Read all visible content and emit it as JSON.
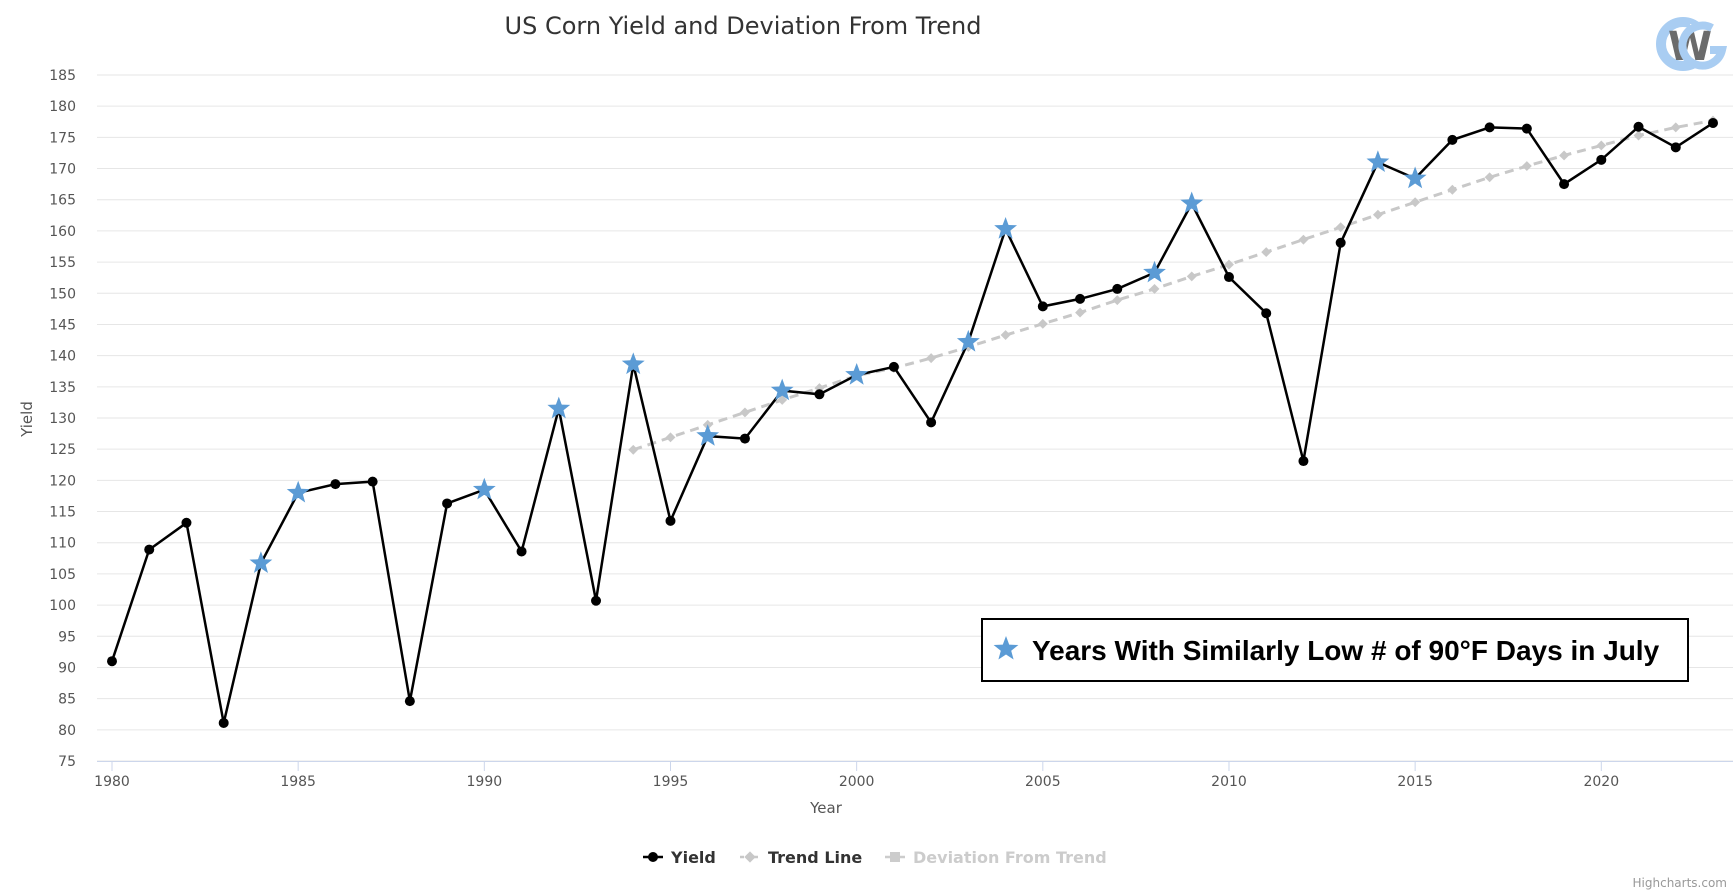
{
  "chart_data": {
    "type": "line",
    "title": "US Corn Yield and Deviation From Trend",
    "xlabel": "Year",
    "ylabel": "Yield",
    "xlim": [
      1980,
      2023
    ],
    "ylim": [
      75,
      185
    ],
    "x_ticks": [
      1980,
      1985,
      1990,
      1995,
      2000,
      2005,
      2010,
      2015,
      2020
    ],
    "y_ticks": [
      75,
      80,
      85,
      90,
      95,
      100,
      105,
      110,
      115,
      120,
      125,
      130,
      135,
      140,
      145,
      150,
      155,
      160,
      165,
      170,
      175,
      180,
      185
    ],
    "grid": true,
    "legend_position": "bottom-center",
    "series": [
      {
        "name": "Yield",
        "color": "#000000",
        "x": [
          1980,
          1981,
          1982,
          1983,
          1984,
          1985,
          1986,
          1987,
          1988,
          1989,
          1990,
          1991,
          1992,
          1993,
          1994,
          1995,
          1996,
          1997,
          1998,
          1999,
          2000,
          2001,
          2002,
          2003,
          2004,
          2005,
          2006,
          2007,
          2008,
          2009,
          2010,
          2011,
          2012,
          2013,
          2014,
          2015,
          2016,
          2017,
          2018,
          2019,
          2020,
          2021,
          2022,
          2023
        ],
        "values": [
          91.0,
          108.9,
          113.2,
          81.1,
          106.7,
          118.0,
          119.4,
          119.8,
          84.6,
          116.3,
          118.5,
          108.6,
          131.5,
          100.7,
          138.6,
          113.5,
          127.1,
          126.7,
          134.4,
          133.8,
          136.9,
          138.2,
          129.3,
          142.2,
          160.3,
          147.9,
          149.1,
          150.7,
          153.3,
          164.4,
          152.6,
          146.8,
          123.1,
          158.1,
          171.0,
          168.4,
          174.6,
          176.6,
          176.4,
          167.5,
          171.4,
          176.7,
          173.4,
          177.3
        ]
      },
      {
        "name": "Trend Line",
        "color": "#c8c8c8",
        "x": [
          1994,
          1995,
          1996,
          1997,
          1998,
          1999,
          2000,
          2001,
          2002,
          2003,
          2004,
          2005,
          2006,
          2007,
          2008,
          2009,
          2010,
          2011,
          2012,
          2013,
          2014,
          2015,
          2016,
          2017,
          2018,
          2019,
          2020,
          2021,
          2022,
          2023
        ],
        "values": [
          124.9,
          126.9,
          128.9,
          130.9,
          132.9,
          134.8,
          136.8,
          138.0,
          139.6,
          141.4,
          143.3,
          145.1,
          146.9,
          148.9,
          150.7,
          152.7,
          154.6,
          156.6,
          158.6,
          160.6,
          162.6,
          164.6,
          166.6,
          168.6,
          170.4,
          172.1,
          173.7,
          175.3,
          176.6,
          177.7
        ]
      },
      {
        "name": "Deviation From Trend",
        "color": "#cccccc",
        "x": [],
        "values": []
      }
    ],
    "highlighted_years": [
      1984,
      1985,
      1990,
      1992,
      1994,
      1996,
      1998,
      2000,
      2003,
      2004,
      2008,
      2009,
      2014,
      2015
    ],
    "highlight_color": "#5b9bd5",
    "annotation": "Years With Similarly Low # of 90°F Days in July",
    "credit": "Highcharts.com",
    "logo_text": "CWG"
  }
}
